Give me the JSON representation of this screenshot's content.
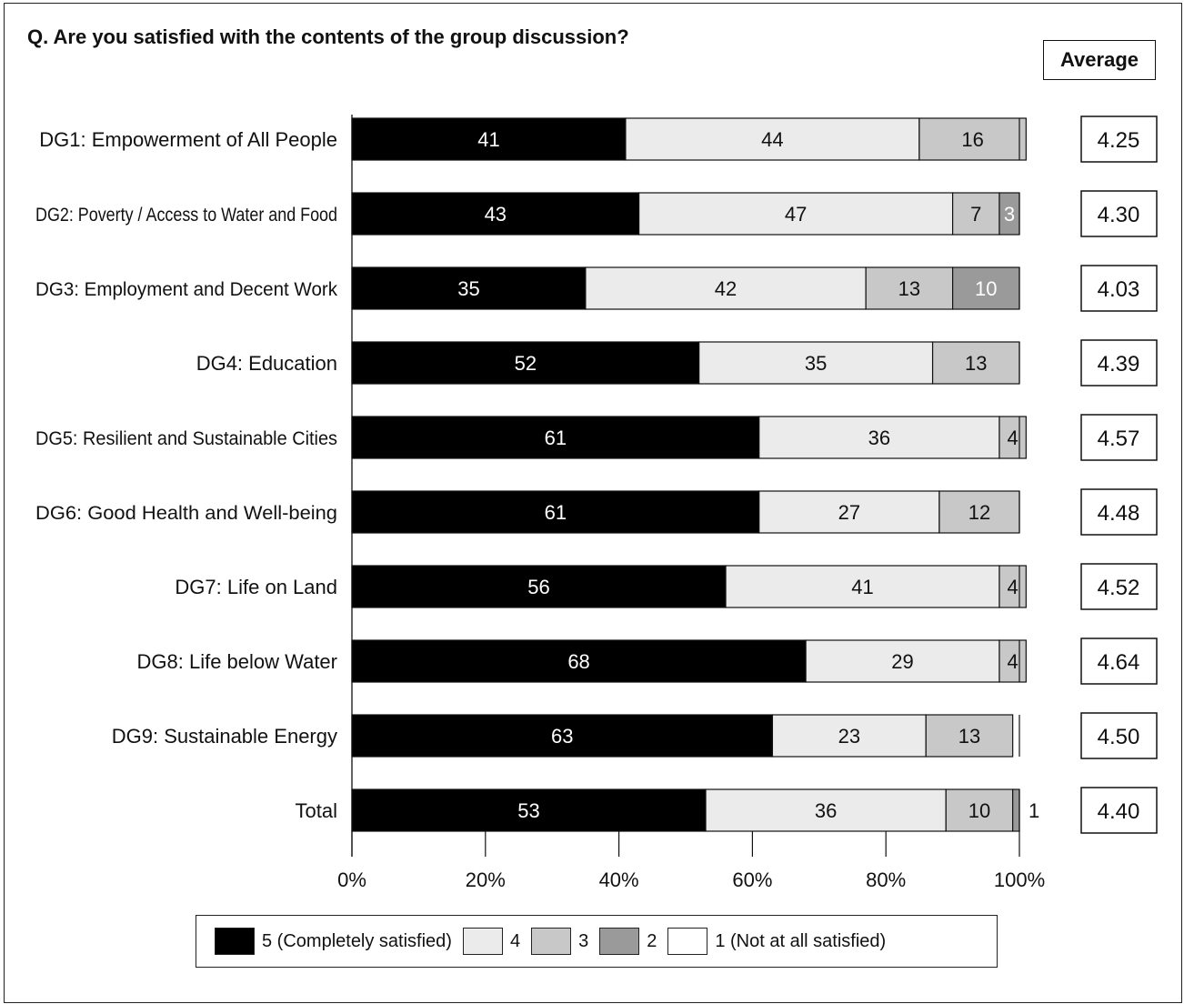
{
  "title": "Q.  Are you satisfied with the contents of the group discussion?",
  "average_header": "Average",
  "chart_data": {
    "type": "bar",
    "orientation": "horizontal",
    "stacked": true,
    "percent": true,
    "title": "Q.  Are you satisfied with the contents of the group discussion?",
    "categories": [
      "DG1: Empowerment of All People",
      "DG2: Poverty / Access to Water and Food",
      "DG3: Employment and Decent Work",
      "DG4: Education",
      "DG5: Resilient and Sustainable Cities",
      "DG6: Good Health and Well-being",
      "DG7: Life on Land",
      "DG8: Life below Water",
      "DG9: Sustainable Energy",
      "Total"
    ],
    "series": [
      {
        "name": "5 (Completely satisfied)",
        "color": "#000000",
        "label_color": "#ffffff",
        "values": [
          41,
          43,
          35,
          52,
          61,
          61,
          56,
          68,
          63,
          53
        ]
      },
      {
        "name": "4",
        "color": "#ebebeb",
        "label_color": "#111111",
        "values": [
          44,
          47,
          42,
          35,
          36,
          27,
          41,
          29,
          23,
          36
        ]
      },
      {
        "name": "3",
        "color": "#c8c8c8",
        "label_color": "#111111",
        "values": [
          16,
          7,
          13,
          13,
          4,
          12,
          4,
          4,
          13,
          10
        ]
      },
      {
        "name": "2",
        "color": "#9a9a9a",
        "label_color": "#ffffff",
        "values": [
          0,
          3,
          10,
          0,
          0,
          0,
          0,
          0,
          0,
          1
        ]
      },
      {
        "name": "1 (Not at all satisfied)",
        "color": "#ffffff",
        "label_color": "#111111",
        "values": [
          0,
          0,
          0,
          0,
          0,
          0,
          0,
          0,
          0,
          0
        ]
      }
    ],
    "outside_labels": [
      {
        "category": "Total",
        "text": "1"
      }
    ],
    "averages": [
      "4.25",
      "4.30",
      "4.03",
      "4.39",
      "4.57",
      "4.48",
      "4.52",
      "4.64",
      "4.50",
      "4.40"
    ],
    "xticks": [
      "0%",
      "20%",
      "40%",
      "60%",
      "80%",
      "100%"
    ],
    "xlim": [
      0,
      100
    ],
    "legend_position": "bottom"
  }
}
